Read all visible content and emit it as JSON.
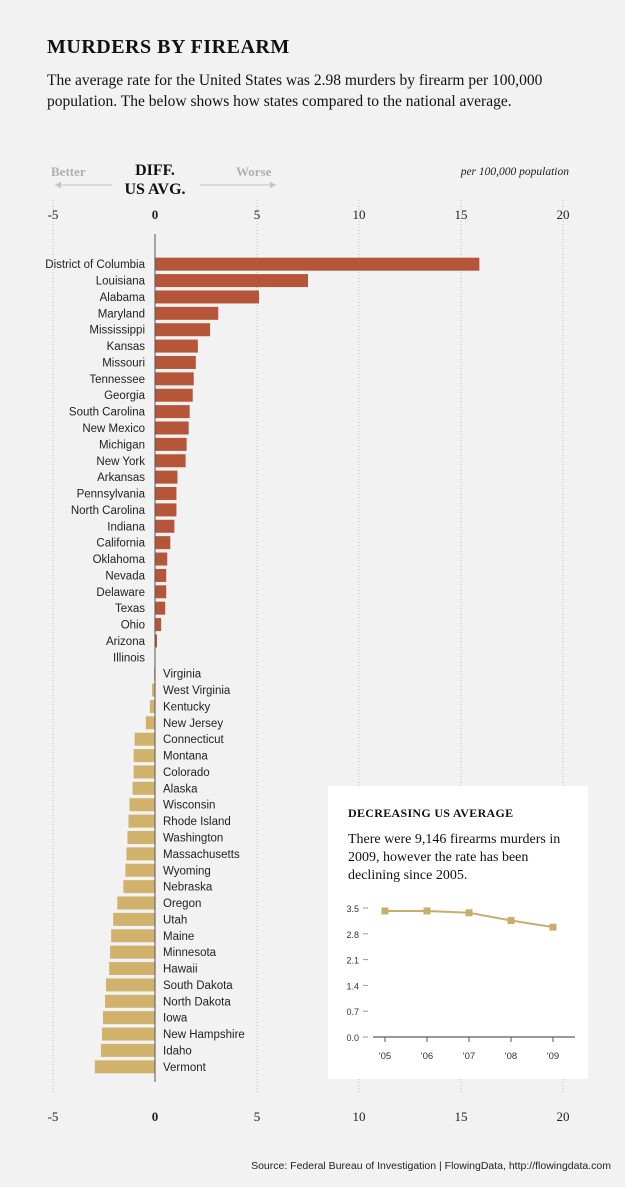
{
  "title": "MURDERS BY FIREARM",
  "subtitle": "The average rate for the United States was 2.98 murders by firearm per 100,000 population. The below shows how states compared to the national average.",
  "legend": {
    "better_label": "Better",
    "worse_label": "Worse",
    "diff_label_line1": "DIFF.",
    "diff_label_line2": "US AVG.",
    "unit_label": "per 100,000 population"
  },
  "colors": {
    "above": "#b5563a",
    "below": "#d1b26c",
    "line": "#c9ad6d"
  },
  "chart_data": [
    {
      "type": "bar",
      "orientation": "horizontal",
      "title": "MURDERS BY FIREARM",
      "xlabel": "per 100,000 population",
      "xlim": [
        -5,
        20
      ],
      "xticks": [
        -5,
        0,
        5,
        10,
        15,
        20
      ],
      "grid": true,
      "categories": [
        "District of Columbia",
        "Louisiana",
        "Alabama",
        "Maryland",
        "Mississippi",
        "Kansas",
        "Missouri",
        "Tennessee",
        "Georgia",
        "South Carolina",
        "New Mexico",
        "Michigan",
        "New York",
        "Arkansas",
        "Pennsylvania",
        "North Carolina",
        "Indiana",
        "California",
        "Oklahoma",
        "Nevada",
        "Delaware",
        "Texas",
        "Ohio",
        "Arizona",
        "Illinois",
        "Virginia",
        "West Virginia",
        "Kentucky",
        "New Jersey",
        "Connecticut",
        "Montana",
        "Colorado",
        "Alaska",
        "Wisconsin",
        "Rhode Island",
        "Washington",
        "Massachusetts",
        "Wyoming",
        "Nebraska",
        "Oregon",
        "Utah",
        "Maine",
        "Minnesota",
        "Hawaii",
        "South Dakota",
        "North Dakota",
        "Iowa",
        "New Hampshire",
        "Idaho",
        "Vermont"
      ],
      "values": [
        15.9,
        7.5,
        5.1,
        3.1,
        2.7,
        2.1,
        2.0,
        1.9,
        1.85,
        1.7,
        1.65,
        1.55,
        1.5,
        1.1,
        1.05,
        1.05,
        0.95,
        0.75,
        0.6,
        0.55,
        0.55,
        0.5,
        0.3,
        0.1,
        0.0,
        -0.05,
        -0.15,
        -0.25,
        -0.45,
        -1.0,
        -1.05,
        -1.05,
        -1.1,
        -1.25,
        -1.3,
        -1.35,
        -1.4,
        -1.45,
        -1.55,
        -1.85,
        -2.05,
        -2.15,
        -2.2,
        -2.25,
        -2.4,
        -2.45,
        -2.55,
        -2.6,
        -2.65,
        -2.95
      ]
    },
    {
      "type": "line",
      "title": "DECREASING US AVERAGE",
      "subtitle": "There were 9,146 firearms murders in 2009, however the rate has been declining since 2005.",
      "x": [
        "'05",
        "'06",
        "'07",
        "'08",
        "'09"
      ],
      "series": [
        {
          "values": [
            3.42,
            3.42,
            3.37,
            3.16,
            2.98
          ]
        }
      ],
      "ylim": [
        0,
        3.5
      ],
      "yticks": [
        "0.0",
        "0.7",
        "1.4",
        "2.1",
        "2.8",
        "3.5"
      ],
      "grid": false
    }
  ],
  "source": "Source: Federal Bureau of Investigation | FlowingData, http://flowingdata.com"
}
